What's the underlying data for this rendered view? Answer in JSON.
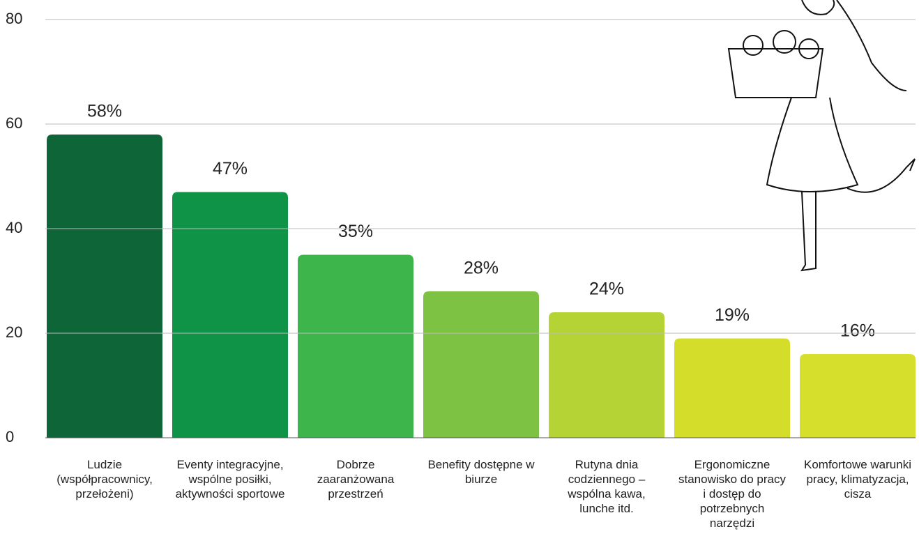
{
  "chart_data": {
    "type": "bar",
    "categories": [
      "Ludzie (współpracownicy, przełożeni)",
      "Eventy integracyjne, wspólne posiłki, aktywności sportowe",
      "Dobrze zaaranżowana przestrzeń",
      "Benefity dostępne w biurze",
      "Rutyna dnia codziennego – wspólna kawa, lunche itd.",
      "Ergonomiczne stanowisko do pracy i dostęp do potrzebnych narzędzi",
      "Komfortowe warunki pracy, klimatyzacja, cisza"
    ],
    "values": [
      58,
      47,
      35,
      28,
      24,
      19,
      16
    ],
    "value_labels": [
      "58%",
      "47%",
      "35%",
      "28%",
      "24%",
      "19%",
      "16%"
    ],
    "colors": [
      "#0e6638",
      "#0f9447",
      "#3db54a",
      "#7dc242",
      "#b5d334",
      "#d4de2a",
      "#d6df2b"
    ],
    "ylim": [
      0,
      80
    ],
    "yticks": [
      0,
      20,
      40,
      60,
      80
    ],
    "grid": true
  }
}
